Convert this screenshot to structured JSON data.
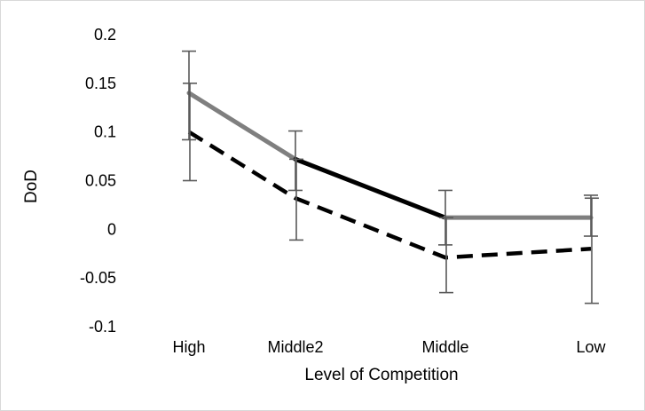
{
  "chart_data": {
    "type": "line",
    "categories": [
      "High",
      "Middle2",
      "Middle",
      "Low"
    ],
    "xlabel": "Level of Competition",
    "ylabel": "DoD",
    "ylim": [
      -0.1,
      0.2
    ],
    "yticks": [
      "0.2",
      "0.15",
      "0.1",
      "0.05",
      "0",
      "-0.05",
      "-0.1"
    ],
    "grid": false,
    "legend": "none",
    "series": [
      {
        "style": "solid",
        "values": [
          0.14,
          0.072,
          0.012,
          0.012
        ],
        "error_low": [
          0.092,
          0.04,
          -0.016,
          -0.007
        ],
        "error_high": [
          0.183,
          0.101,
          0.04,
          0.035
        ],
        "color_segments": [
          "#7f7f7f",
          "#000000",
          "#7f7f7f"
        ]
      },
      {
        "style": "dashed",
        "values": [
          0.1,
          0.032,
          -0.029,
          -0.02
        ],
        "error_low": [
          0.05,
          -0.011,
          -0.065,
          -0.076
        ],
        "error_high": [
          0.15,
          0.072,
          0.012,
          0.032
        ],
        "color": "#000000"
      }
    ],
    "colors": {
      "solid_line_gray": "#7f7f7f",
      "solid_line_black": "#000000",
      "dashed_line": "#000000",
      "error_bar": "#595959"
    }
  }
}
